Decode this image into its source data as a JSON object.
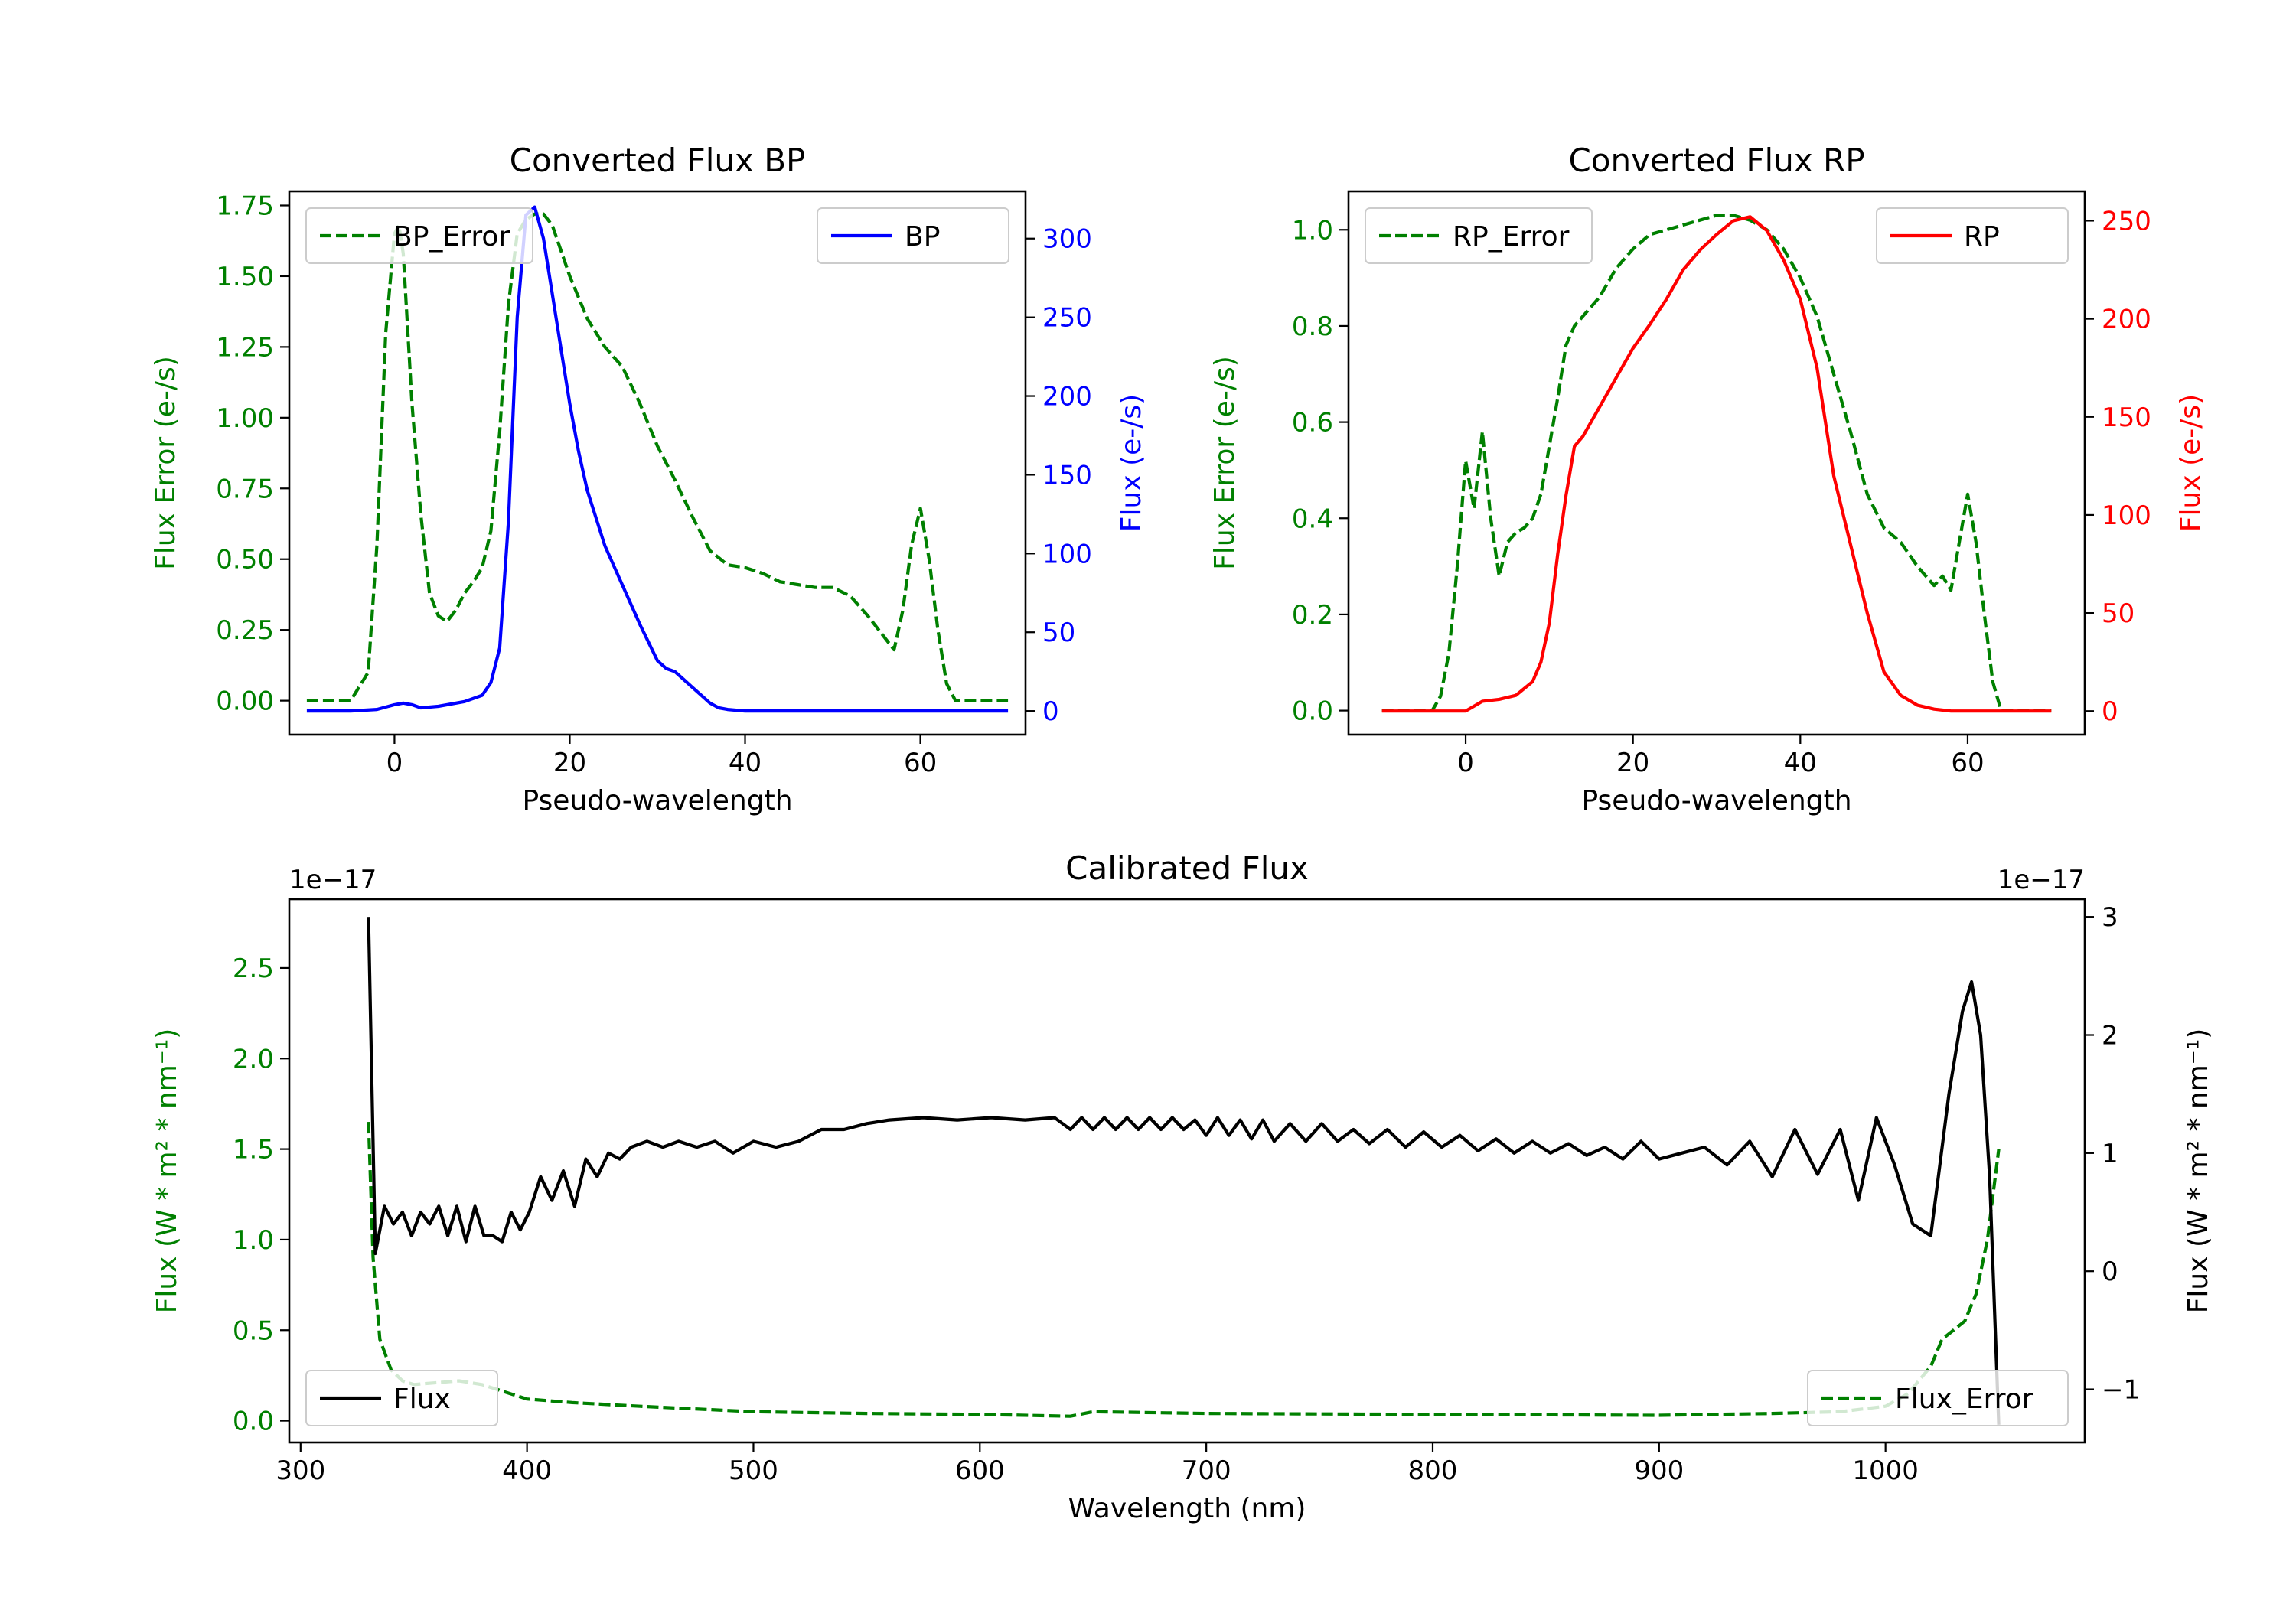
{
  "colors": {
    "error": "#008000",
    "bp": "#0000ff",
    "rp": "#ff0000",
    "flux": "#000000"
  },
  "chart_data": [
    {
      "type": "line",
      "title": "Converted Flux BP",
      "xlabel": "Pseudo-wavelength",
      "ylabel_left": "Flux Error (e-/s)",
      "ylabel_right": "Flux (e-/s)",
      "xlim": [
        -12,
        72
      ],
      "ylim_left": [
        -0.12,
        1.8
      ],
      "ylim_right": [
        -15,
        330
      ],
      "xticks": [
        "0",
        "20",
        "40",
        "60"
      ],
      "yticks_left": [
        "0.00",
        "0.25",
        "0.50",
        "0.75",
        "1.00",
        "1.25",
        "1.50",
        "1.75"
      ],
      "yticks_right": [
        "0",
        "50",
        "100",
        "150",
        "200",
        "250",
        "300"
      ],
      "legend_left": "BP_Error",
      "legend_right": "BP",
      "series": [
        {
          "name": "BP_Error",
          "axis": "left",
          "style": "dashed",
          "color_key": "error",
          "x": [
            -10,
            -5,
            -3,
            -2,
            -1,
            0,
            0.5,
            1,
            2,
            3,
            4,
            5,
            6,
            7,
            8,
            9,
            10,
            11,
            12,
            13,
            14,
            15,
            16,
            17,
            18,
            20,
            22,
            24,
            26,
            28,
            30,
            32,
            34,
            36,
            38,
            40,
            42,
            44,
            46,
            48,
            50,
            52,
            54,
            56,
            57,
            58,
            59,
            60,
            61,
            62,
            63,
            64,
            66,
            70
          ],
          "y": [
            0.0,
            0.0,
            0.1,
            0.55,
            1.3,
            1.65,
            1.68,
            1.58,
            1.05,
            0.66,
            0.38,
            0.3,
            0.28,
            0.32,
            0.38,
            0.42,
            0.47,
            0.6,
            0.95,
            1.4,
            1.65,
            1.7,
            1.72,
            1.72,
            1.68,
            1.5,
            1.35,
            1.25,
            1.18,
            1.05,
            0.9,
            0.78,
            0.65,
            0.53,
            0.48,
            0.47,
            0.45,
            0.42,
            0.41,
            0.4,
            0.4,
            0.37,
            0.3,
            0.22,
            0.18,
            0.32,
            0.55,
            0.68,
            0.5,
            0.25,
            0.06,
            0.0,
            0.0,
            0.0
          ]
        },
        {
          "name": "BP",
          "axis": "right",
          "style": "solid",
          "color_key": "bp",
          "x": [
            -10,
            -5,
            -2,
            0,
            1,
            2,
            3,
            5,
            8,
            10,
            11,
            12,
            13,
            14,
            15,
            16,
            17,
            18,
            19,
            20,
            21,
            22,
            24,
            26,
            28,
            30,
            31,
            32,
            33,
            34,
            35,
            36,
            37,
            38,
            40,
            42,
            45,
            50,
            55,
            60,
            65,
            70
          ],
          "y": [
            0,
            0,
            1,
            4,
            5,
            4,
            2,
            3,
            6,
            10,
            18,
            40,
            120,
            250,
            315,
            320,
            300,
            265,
            230,
            195,
            165,
            140,
            105,
            80,
            55,
            32,
            27,
            25,
            20,
            15,
            10,
            5,
            2,
            1,
            0,
            0,
            0,
            0,
            0,
            0,
            0,
            0
          ]
        }
      ]
    },
    {
      "type": "line",
      "title": "Converted Flux RP",
      "xlabel": "Pseudo-wavelength",
      "ylabel_left": "Flux Error (e-/s)",
      "ylabel_right": "Flux (e-/s)",
      "xlim": [
        -14,
        74
      ],
      "ylim_left": [
        -0.05,
        1.08
      ],
      "ylim_right": [
        -12,
        265
      ],
      "xticks": [
        "0",
        "20",
        "40",
        "60"
      ],
      "yticks_left": [
        "0.0",
        "0.2",
        "0.4",
        "0.6",
        "0.8",
        "1.0"
      ],
      "yticks_right": [
        "0",
        "50",
        "100",
        "150",
        "200",
        "250"
      ],
      "legend_left": "RP_Error",
      "legend_right": "RP",
      "series": [
        {
          "name": "RP_Error",
          "axis": "left",
          "style": "dashed",
          "color_key": "error",
          "x": [
            -10,
            -4,
            -3,
            -2,
            -1,
            0,
            1,
            2,
            3,
            4,
            5,
            6,
            7,
            8,
            9,
            10,
            11,
            12,
            13,
            14,
            16,
            18,
            20,
            22,
            24,
            26,
            28,
            30,
            32,
            34,
            36,
            38,
            40,
            42,
            44,
            46,
            48,
            50,
            52,
            54,
            55,
            56,
            57,
            58,
            59,
            60,
            61,
            62,
            63,
            64,
            66,
            70
          ],
          "y": [
            0.0,
            0.0,
            0.03,
            0.12,
            0.3,
            0.52,
            0.42,
            0.58,
            0.4,
            0.28,
            0.35,
            0.37,
            0.38,
            0.4,
            0.45,
            0.55,
            0.65,
            0.76,
            0.8,
            0.82,
            0.86,
            0.92,
            0.96,
            0.99,
            1.0,
            1.01,
            1.02,
            1.03,
            1.03,
            1.02,
            1.0,
            0.96,
            0.9,
            0.82,
            0.7,
            0.58,
            0.45,
            0.38,
            0.35,
            0.3,
            0.28,
            0.26,
            0.28,
            0.25,
            0.35,
            0.45,
            0.35,
            0.2,
            0.06,
            0.0,
            0.0,
            0.0
          ]
        },
        {
          "name": "RP",
          "axis": "right",
          "style": "solid",
          "color_key": "rp",
          "x": [
            -10,
            -5,
            0,
            2,
            4,
            6,
            8,
            9,
            10,
            11,
            12,
            13,
            14,
            16,
            18,
            20,
            22,
            24,
            26,
            28,
            30,
            32,
            34,
            36,
            38,
            40,
            42,
            44,
            46,
            48,
            50,
            52,
            54,
            56,
            58,
            60,
            65,
            70
          ],
          "y": [
            0,
            0,
            0,
            5,
            6,
            8,
            15,
            25,
            45,
            80,
            110,
            135,
            140,
            155,
            170,
            185,
            197,
            210,
            225,
            235,
            243,
            250,
            252,
            245,
            230,
            210,
            175,
            120,
            85,
            50,
            20,
            8,
            3,
            1,
            0,
            0,
            0,
            0
          ]
        }
      ]
    },
    {
      "type": "line",
      "title": "Calibrated Flux",
      "xlabel": "Wavelength (nm)",
      "ylabel_left": "Flux (W * m² * nm⁻¹)",
      "ylabel_right": "Flux (W * m² * nm⁻¹)",
      "offset_left": "1e−17",
      "offset_right": "1e−17",
      "xlim": [
        295,
        1088
      ],
      "ylim_left": [
        -0.12,
        2.88
      ],
      "ylim_right": [
        -1.45,
        3.15
      ],
      "xticks": [
        "300",
        "400",
        "500",
        "600",
        "700",
        "800",
        "900",
        "1000"
      ],
      "yticks_left": [
        "0.0",
        "0.5",
        "1.0",
        "1.5",
        "2.0",
        "2.5"
      ],
      "yticks_right": [
        "−1",
        "0",
        "1",
        "2",
        "3"
      ],
      "legend_left": "Flux",
      "legend_right": "Flux_Error",
      "series": [
        {
          "name": "Flux_Error",
          "axis": "left",
          "style": "dashed",
          "color_key": "error",
          "x": [
            330,
            332,
            335,
            340,
            345,
            350,
            360,
            370,
            380,
            390,
            400,
            420,
            450,
            500,
            550,
            600,
            640,
            650,
            700,
            800,
            900,
            950,
            980,
            1000,
            1010,
            1020,
            1025,
            1030,
            1035,
            1040,
            1045,
            1050
          ],
          "y": [
            1.65,
            0.9,
            0.45,
            0.28,
            0.22,
            0.2,
            0.21,
            0.22,
            0.2,
            0.16,
            0.12,
            0.1,
            0.08,
            0.05,
            0.04,
            0.035,
            0.025,
            0.05,
            0.04,
            0.035,
            0.03,
            0.04,
            0.05,
            0.08,
            0.15,
            0.3,
            0.45,
            0.5,
            0.55,
            0.7,
            1.0,
            1.5
          ]
        },
        {
          "name": "Flux",
          "axis": "right",
          "style": "solid",
          "color_key": "flux",
          "x": [
            330,
            333,
            337,
            341,
            345,
            349,
            353,
            357,
            361,
            365,
            369,
            373,
            377,
            381,
            385,
            389,
            393,
            397,
            401,
            406,
            411,
            416,
            421,
            426,
            431,
            436,
            441,
            446,
            453,
            460,
            467,
            475,
            483,
            491,
            500,
            510,
            520,
            530,
            540,
            550,
            560,
            575,
            590,
            605,
            620,
            633,
            640,
            645,
            650,
            655,
            660,
            665,
            670,
            675,
            680,
            685,
            690,
            695,
            700,
            705,
            710,
            715,
            720,
            725,
            730,
            737,
            744,
            751,
            758,
            765,
            772,
            780,
            788,
            796,
            804,
            812,
            820,
            828,
            836,
            844,
            852,
            860,
            868,
            876,
            884,
            892,
            900,
            910,
            920,
            930,
            940,
            950,
            960,
            970,
            980,
            988,
            996,
            1004,
            1012,
            1020,
            1028,
            1034,
            1038,
            1042,
            1046,
            1050
          ],
          "y": [
            3.0,
            0.15,
            0.55,
            0.4,
            0.5,
            0.3,
            0.5,
            0.4,
            0.55,
            0.3,
            0.55,
            0.25,
            0.55,
            0.3,
            0.3,
            0.25,
            0.5,
            0.35,
            0.5,
            0.8,
            0.6,
            0.85,
            0.55,
            0.95,
            0.8,
            1.0,
            0.95,
            1.05,
            1.1,
            1.05,
            1.1,
            1.05,
            1.1,
            1.0,
            1.1,
            1.05,
            1.1,
            1.2,
            1.2,
            1.25,
            1.28,
            1.3,
            1.28,
            1.3,
            1.28,
            1.3,
            1.2,
            1.3,
            1.2,
            1.3,
            1.2,
            1.3,
            1.2,
            1.3,
            1.2,
            1.3,
            1.2,
            1.28,
            1.15,
            1.3,
            1.15,
            1.28,
            1.12,
            1.28,
            1.1,
            1.25,
            1.1,
            1.25,
            1.1,
            1.2,
            1.08,
            1.2,
            1.05,
            1.18,
            1.05,
            1.15,
            1.02,
            1.12,
            1.0,
            1.1,
            1.0,
            1.08,
            0.98,
            1.05,
            0.95,
            1.1,
            0.95,
            1.0,
            1.05,
            0.9,
            1.1,
            0.8,
            1.2,
            0.82,
            1.2,
            0.6,
            1.3,
            0.9,
            0.4,
            0.3,
            1.5,
            2.2,
            2.45,
            2.0,
            0.8,
            -1.3
          ]
        }
      ]
    }
  ]
}
